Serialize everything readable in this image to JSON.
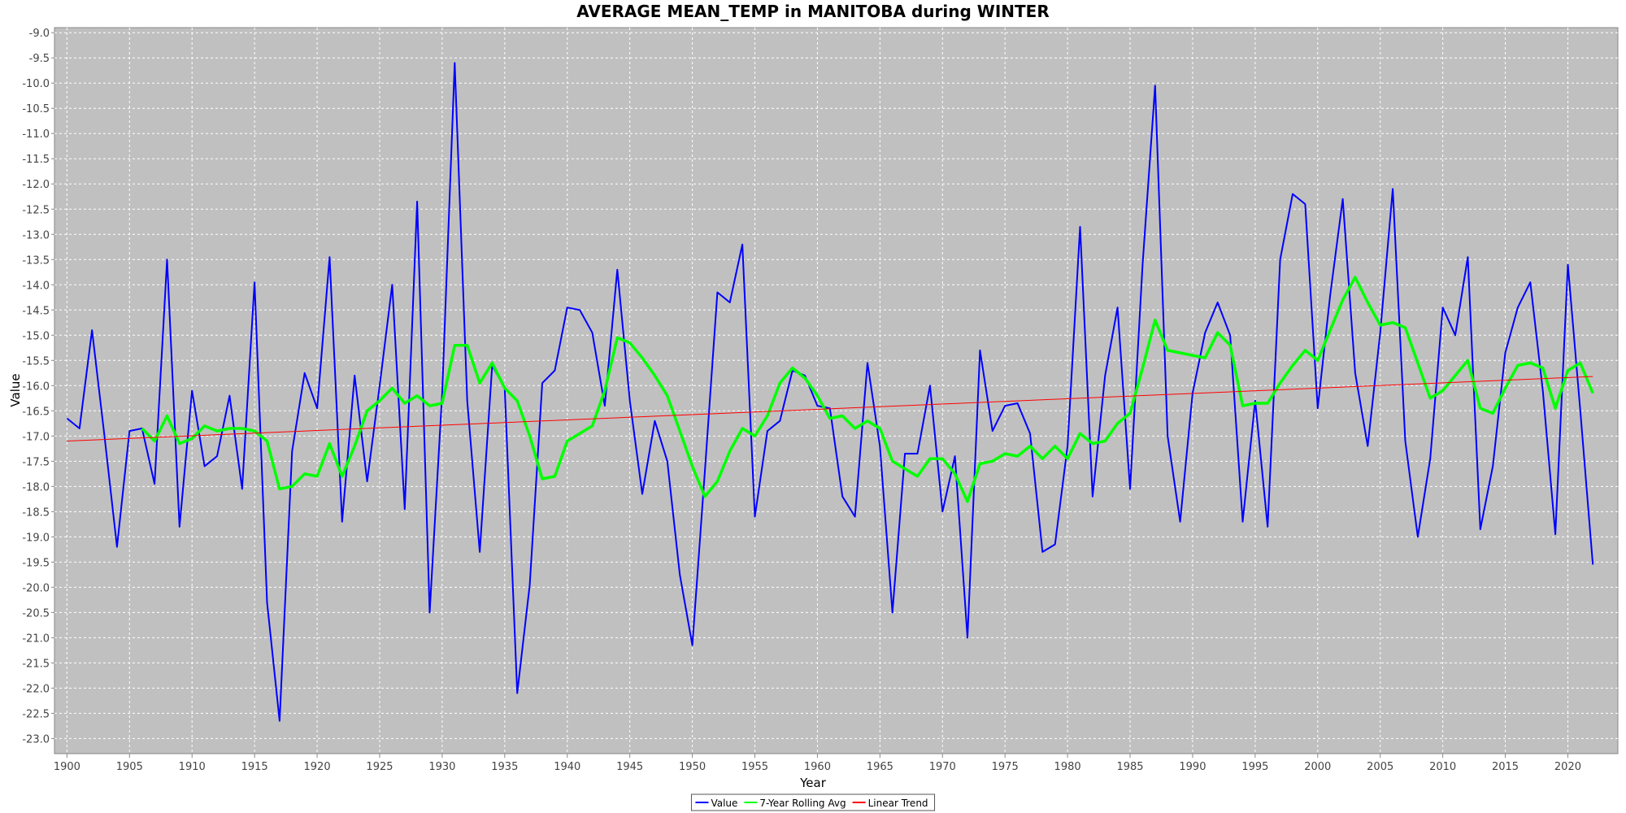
{
  "chart_data": {
    "type": "line",
    "title": "AVERAGE MEAN_TEMP in MANITOBA during WINTER",
    "xlabel": "Year",
    "ylabel": "Value",
    "xlim": [
      1899,
      2024
    ],
    "ylim": [
      -23.3,
      -8.9
    ],
    "x_ticks": [
      1900,
      1905,
      1910,
      1915,
      1920,
      1925,
      1930,
      1935,
      1940,
      1945,
      1950,
      1955,
      1960,
      1965,
      1970,
      1975,
      1980,
      1985,
      1990,
      1995,
      2000,
      2005,
      2010,
      2015,
      2020
    ],
    "y_ticks": [
      -9.0,
      -9.5,
      -10.0,
      -10.5,
      -11.0,
      -11.5,
      -12.0,
      -12.5,
      -13.0,
      -13.5,
      -14.0,
      -14.5,
      -15.0,
      -15.5,
      -16.0,
      -16.5,
      -17.0,
      -17.5,
      -18.0,
      -18.5,
      -19.0,
      -19.5,
      -20.0,
      -20.5,
      -21.0,
      -21.5,
      -22.0,
      -22.5,
      -23.0
    ],
    "grid": true,
    "legend_position": "bottom",
    "series": [
      {
        "name": "Value",
        "color": "#0000ff",
        "x_start": 1900,
        "values": [
          -16.65,
          -16.85,
          -14.9,
          -17.0,
          -19.2,
          -16.9,
          -16.85,
          -17.95,
          -13.5,
          -18.8,
          -16.1,
          -17.6,
          -17.4,
          -16.2,
          -18.05,
          -13.95,
          -20.3,
          -22.65,
          -17.3,
          -15.75,
          -16.45,
          -13.45,
          -18.7,
          -15.8,
          -17.9,
          -16.0,
          -14.0,
          -18.45,
          -12.35,
          -20.5,
          -16.15,
          -9.6,
          -16.3,
          -19.3,
          -15.6,
          -16.05,
          -22.1,
          -19.95,
          -15.95,
          -15.7,
          -14.45,
          -14.5,
          -14.95,
          -16.4,
          -13.7,
          -16.3,
          -18.15,
          -16.7,
          -17.5,
          -19.75,
          -21.15,
          -17.7,
          -14.15,
          -14.35,
          -13.2,
          -18.6,
          -16.9,
          -16.7,
          -15.7,
          -15.8,
          -16.4,
          -16.45,
          -18.2,
          -18.6,
          -15.55,
          -17.2,
          -20.5,
          -17.35,
          -17.35,
          -16.0,
          -18.5,
          -17.4,
          -21.0,
          -15.3,
          -16.9,
          -16.4,
          -16.35,
          -16.95,
          -19.3,
          -19.15,
          -17.2,
          -12.85,
          -18.2,
          -15.8,
          -14.45,
          -18.05,
          -13.6,
          -10.05,
          -17.0,
          -18.7,
          -16.15,
          -14.95,
          -14.35,
          -15.0,
          -18.7,
          -16.3,
          -18.8,
          -13.5,
          -12.2,
          -12.4,
          -16.45,
          -14.2,
          -12.3,
          -15.75,
          -17.2,
          -14.95,
          -12.1,
          -17.1,
          -19.0,
          -17.45,
          -14.45,
          -15.0,
          -13.45,
          -18.85,
          -17.6,
          -15.35,
          -14.45,
          -13.95,
          -16.1,
          -18.95,
          -13.6,
          -16.5,
          -19.55
        ]
      },
      {
        "name": "7-Year Rolling Avg",
        "color": "#00ff00",
        "x_start": 1906,
        "values": [
          -16.85,
          -17.1,
          -16.6,
          -17.15,
          -17.05,
          -16.8,
          -16.9,
          -16.85,
          -16.85,
          -16.9,
          -17.1,
          -18.05,
          -18.0,
          -17.75,
          -17.8,
          -17.15,
          -17.8,
          -17.2,
          -16.5,
          -16.3,
          -16.05,
          -16.35,
          -16.2,
          -16.4,
          -16.35,
          -15.2,
          -15.2,
          -15.95,
          -15.55,
          -16.05,
          -16.3,
          -17.0,
          -17.85,
          -17.8,
          -17.1,
          -16.95,
          -16.8,
          -16.1,
          -15.05,
          -15.15,
          -15.45,
          -15.8,
          -16.2,
          -16.9,
          -17.6,
          -18.2,
          -17.9,
          -17.3,
          -16.85,
          -17.0,
          -16.6,
          -15.95,
          -15.65,
          -15.85,
          -16.2,
          -16.65,
          -16.6,
          -16.85,
          -16.7,
          -16.85,
          -17.5,
          -17.65,
          -17.8,
          -17.45,
          -17.45,
          -17.75,
          -18.3,
          -17.55,
          -17.5,
          -17.35,
          -17.4,
          -17.2,
          -17.45,
          -17.2,
          -17.45,
          -16.95,
          -17.15,
          -17.1,
          -16.75,
          -16.55,
          -15.65,
          -14.7,
          -15.3,
          -15.35,
          -15.4,
          -15.45,
          -14.95,
          -15.2,
          -16.4,
          -16.35,
          -16.35,
          -15.95,
          -15.6,
          -15.3,
          -15.5,
          -14.9,
          -14.3,
          -13.85,
          -14.35,
          -14.8,
          -14.75,
          -14.85,
          -15.55,
          -16.25,
          -16.1,
          -15.8,
          -15.5,
          -16.45,
          -16.55,
          -16.05,
          -15.6,
          -15.55,
          -15.65,
          -16.45,
          -15.7,
          -15.55,
          -16.15
        ]
      },
      {
        "name": "Linear Trend",
        "color": "#ff0000",
        "x_start": 1900,
        "x_end": 2022,
        "start_value": -17.1,
        "end_value": -15.82
      }
    ]
  }
}
